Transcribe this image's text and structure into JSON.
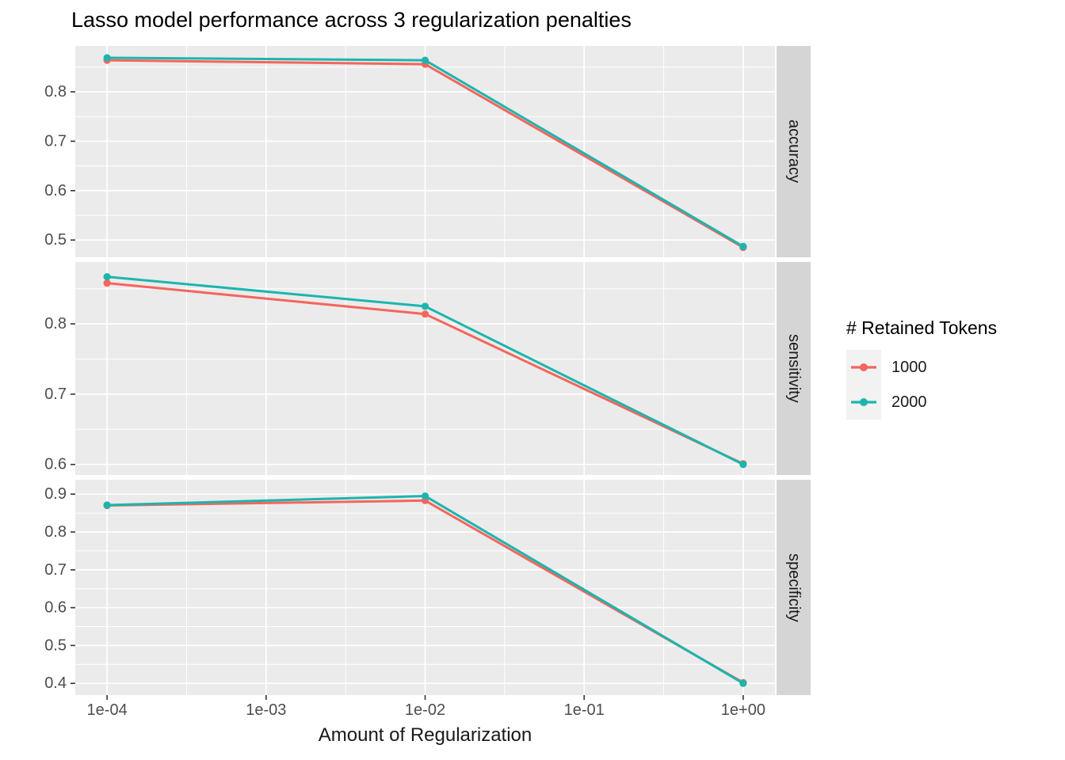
{
  "title": "Lasso model performance across 3 regularization penalties",
  "x_axis": {
    "title": "Amount of Regularization",
    "tick_labels": [
      "1e-04",
      "1e-03",
      "1e-02",
      "1e-01",
      "1e+00"
    ]
  },
  "legend": {
    "title": "# Retained Tokens",
    "items": [
      {
        "label": "1000",
        "color": "#F4655D"
      },
      {
        "label": "2000",
        "color": "#1CB5AE"
      }
    ]
  },
  "colors": {
    "panel_bg": "#EBEBEB",
    "strip_bg": "#D5D5D5",
    "grid": "#FFFFFF",
    "axis_text": "#4D4D4D",
    "tick_mark": "#333333",
    "text": "#1A1A1A"
  },
  "chart_data": {
    "type": "line",
    "title": "Lasso model performance across 3 regularization penalties",
    "xlabel": "Amount of Regularization",
    "x_scale": "log10",
    "x": [
      0.0001,
      0.01,
      1.0
    ],
    "x_tick_values": [
      0.0001,
      0.001,
      0.01,
      0.1,
      1.0
    ],
    "x_tick_labels": [
      "1e-04",
      "1e-03",
      "1e-02",
      "1e-01",
      "1e+00"
    ],
    "xlim_log10": [
      -4.2,
      0.2
    ],
    "grid": true,
    "legend_title": "# Retained Tokens",
    "legend_position": "right",
    "facet_variable_values": [
      "accuracy",
      "sensitivity",
      "specificity"
    ],
    "facets": [
      {
        "label": "accuracy",
        "ylim": [
          0.465,
          0.893
        ],
        "y_ticks": [
          0.5,
          0.6,
          0.7,
          0.8
        ],
        "series": [
          {
            "name": "1000",
            "color": "#F4655D",
            "values": [
              0.864,
              0.856,
              0.485
            ]
          },
          {
            "name": "2000",
            "color": "#1CB5AE",
            "values": [
              0.869,
              0.864,
              0.487
            ]
          }
        ]
      },
      {
        "label": "sensitivity",
        "ylim": [
          0.585,
          0.888
        ],
        "y_ticks": [
          0.6,
          0.7,
          0.8
        ],
        "series": [
          {
            "name": "1000",
            "color": "#F4655D",
            "values": [
              0.858,
              0.814,
              0.601
            ]
          },
          {
            "name": "2000",
            "color": "#1CB5AE",
            "values": [
              0.867,
              0.825,
              0.6
            ]
          }
        ]
      },
      {
        "label": "specificity",
        "ylim": [
          0.369,
          0.938
        ],
        "y_ticks": [
          0.4,
          0.5,
          0.6,
          0.7,
          0.8,
          0.9
        ],
        "series": [
          {
            "name": "1000",
            "color": "#F4655D",
            "values": [
              0.87,
              0.883,
              0.402
            ]
          },
          {
            "name": "2000",
            "color": "#1CB5AE",
            "values": [
              0.871,
              0.895,
              0.4
            ]
          }
        ]
      }
    ]
  }
}
